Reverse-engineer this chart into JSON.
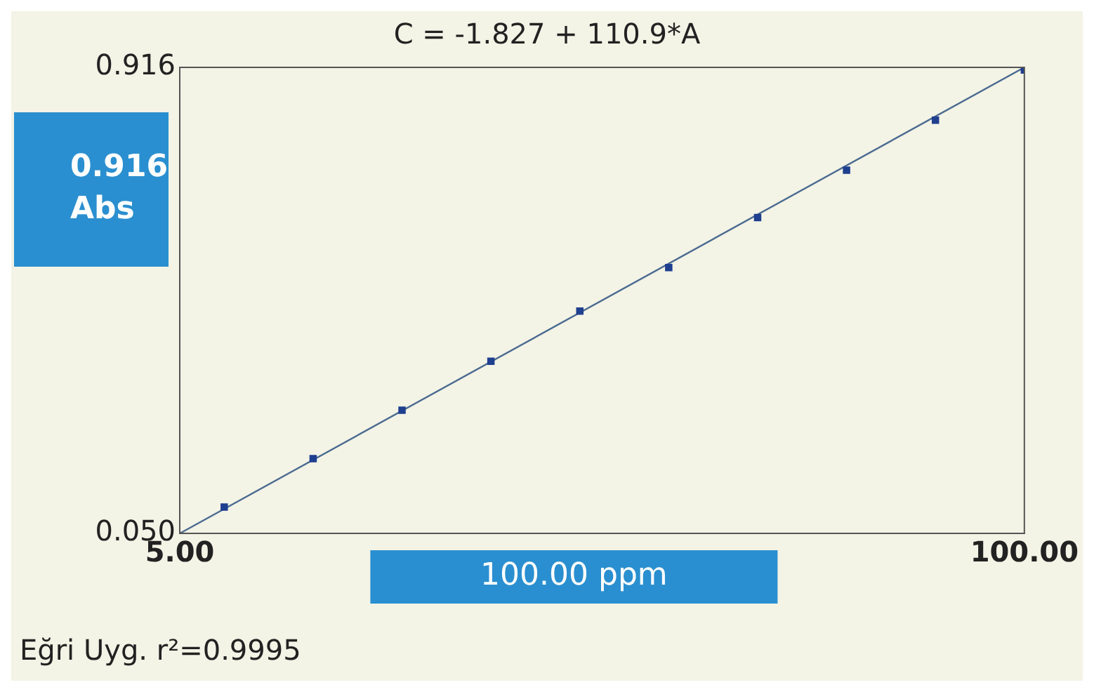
{
  "chart_data": {
    "type": "scatter",
    "title": "C = -1.827 + 110.9*A",
    "xlabel": "100.00 ppm",
    "ylabel": "0.916 Abs",
    "annotations": [
      "Eğri Uyg. r²=0.9995"
    ],
    "x": [
      10,
      20,
      30,
      40,
      50,
      60,
      70,
      80,
      90,
      100
    ],
    "series": [
      {
        "type": "scatter",
        "color": "#1f3f8f",
        "marker": "square",
        "values": [
          0.099,
          0.189,
          0.279,
          0.37,
          0.463,
          0.544,
          0.637,
          0.725,
          0.818,
          0.911
        ]
      },
      {
        "type": "line",
        "color": "#4a6a90",
        "marker": "none",
        "x": [
          5,
          100
        ],
        "values": [
          0.05,
          0.916
        ]
      }
    ],
    "xlim": [
      5,
      100
    ],
    "xticks": [
      {
        "value": 5,
        "label": "5.00"
      },
      {
        "value": 100,
        "label": "100.00"
      }
    ],
    "ylim": [
      0.05,
      0.916
    ],
    "yticks": [
      {
        "value": 0.05,
        "label": "0.050"
      },
      {
        "value": 0.916,
        "label": "0.916"
      }
    ],
    "legend": false
  }
}
